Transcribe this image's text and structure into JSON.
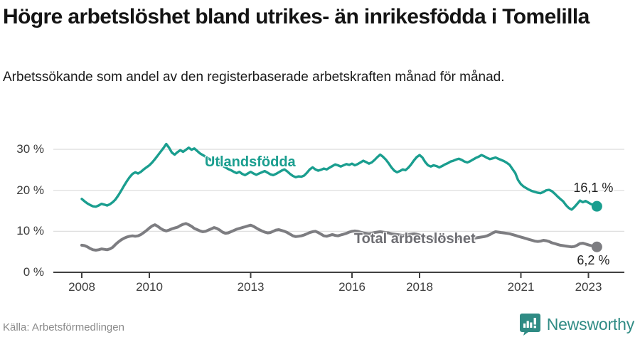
{
  "header": {
    "title": "Högre arbetslöshet bland utrikes- än inrikesfödda i Tomelilla",
    "subtitle": "Arbetssökande som andel av den registerbaserade arbetskraften månad för månad."
  },
  "chart_data": {
    "type": "line",
    "title": "Högre arbetslöshet bland utrikes- än inrikesfödda i Tomelilla",
    "x_unit": "month",
    "x_start_year": 2008,
    "x_end": "2023-04",
    "ylim": [
      0,
      33
    ],
    "grid": "horizontal",
    "yticks": [
      {
        "label": "0 %",
        "value": 0
      },
      {
        "label": "10 %",
        "value": 10
      },
      {
        "label": "20 %",
        "value": 20
      },
      {
        "label": "30 %",
        "value": 30
      }
    ],
    "xticks": [
      {
        "label": "2008",
        "year": 2008
      },
      {
        "label": "2010",
        "year": 2010
      },
      {
        "label": "2013",
        "year": 2013
      },
      {
        "label": "2016",
        "year": 2016
      },
      {
        "label": "2018",
        "year": 2018
      },
      {
        "label": "2021",
        "year": 2021
      },
      {
        "label": "2023",
        "year": 2023
      }
    ],
    "series": [
      {
        "name": "Utlandsfödda",
        "color": "#1a9e8f",
        "end_label": "16,1 %",
        "end_value": 16.1,
        "values": [
          17.9,
          17.3,
          16.8,
          16.4,
          16.1,
          16.0,
          16.3,
          16.7,
          16.5,
          16.3,
          16.6,
          17.1,
          17.8,
          18.8,
          19.9,
          21.1,
          22.2,
          23.2,
          24.0,
          24.4,
          24.1,
          24.5,
          25.1,
          25.6,
          26.1,
          26.8,
          27.6,
          28.5,
          29.4,
          30.3,
          31.3,
          30.4,
          29.2,
          28.7,
          29.3,
          29.8,
          29.4,
          29.9,
          30.4,
          29.9,
          30.2,
          29.6,
          29.0,
          28.6,
          28.2,
          27.8,
          27.3,
          27.6,
          27.1,
          26.5,
          26.0,
          25.6,
          25.2,
          24.9,
          24.5,
          24.2,
          24.5,
          24.0,
          23.7,
          24.1,
          24.5,
          24.1,
          23.8,
          24.1,
          24.4,
          24.7,
          24.3,
          23.9,
          23.7,
          24.0,
          24.4,
          24.8,
          25.1,
          24.6,
          24.0,
          23.5,
          23.2,
          23.4,
          23.3,
          23.6,
          24.3,
          25.1,
          25.6,
          25.1,
          24.8,
          25.0,
          25.3,
          25.1,
          25.5,
          25.9,
          26.3,
          26.1,
          25.8,
          26.1,
          26.4,
          26.2,
          26.5,
          26.1,
          26.4,
          26.8,
          27.2,
          26.9,
          26.5,
          26.8,
          27.4,
          28.1,
          28.7,
          28.2,
          27.5,
          26.6,
          25.6,
          24.8,
          24.4,
          24.7,
          25.1,
          24.9,
          25.5,
          26.3,
          27.3,
          28.1,
          28.6,
          28.0,
          26.9,
          26.1,
          25.8,
          26.1,
          25.9,
          25.6,
          25.9,
          26.3,
          26.6,
          27.0,
          27.2,
          27.5,
          27.7,
          27.4,
          27.0,
          26.8,
          27.1,
          27.5,
          27.9,
          28.2,
          28.6,
          28.3,
          27.9,
          27.6,
          27.8,
          28.0,
          27.7,
          27.4,
          27.1,
          26.7,
          26.2,
          25.2,
          24.2,
          22.5,
          21.5,
          20.9,
          20.5,
          20.1,
          19.8,
          19.6,
          19.4,
          19.3,
          19.6,
          20.0,
          20.1,
          19.8,
          19.2,
          18.5,
          17.9,
          17.3,
          16.4,
          15.7,
          15.3,
          15.9,
          16.7,
          17.5,
          17.1,
          17.4,
          17.0,
          16.6,
          16.4,
          16.1
        ]
      },
      {
        "name": "Total arbetslöshet",
        "color": "#7d7d81",
        "end_label": "6,2 %",
        "end_value": 6.2,
        "values": [
          6.6,
          6.5,
          6.2,
          5.8,
          5.5,
          5.4,
          5.5,
          5.7,
          5.6,
          5.5,
          5.7,
          6.1,
          6.8,
          7.4,
          7.9,
          8.3,
          8.6,
          8.8,
          8.9,
          8.8,
          8.9,
          9.2,
          9.7,
          10.2,
          10.8,
          11.3,
          11.6,
          11.2,
          10.7,
          10.3,
          10.1,
          10.3,
          10.6,
          10.8,
          11.0,
          11.4,
          11.7,
          11.9,
          11.6,
          11.2,
          10.7,
          10.4,
          10.1,
          9.9,
          10.0,
          10.3,
          10.6,
          10.9,
          10.7,
          10.3,
          9.8,
          9.5,
          9.6,
          9.9,
          10.2,
          10.5,
          10.7,
          10.9,
          11.1,
          11.3,
          11.5,
          11.2,
          10.8,
          10.4,
          10.1,
          9.8,
          9.6,
          9.7,
          10.0,
          10.3,
          10.4,
          10.2,
          10.0,
          9.7,
          9.3,
          8.9,
          8.7,
          8.8,
          8.9,
          9.1,
          9.4,
          9.7,
          9.9,
          10.0,
          9.7,
          9.3,
          8.9,
          8.8,
          9.0,
          9.2,
          9.0,
          8.9,
          9.1,
          9.3,
          9.5,
          9.8,
          10.0,
          10.1,
          10.0,
          9.8,
          9.6,
          9.5,
          9.4,
          9.5,
          9.7,
          9.8,
          9.9,
          9.8,
          9.7,
          9.6,
          9.4,
          9.3,
          9.2,
          9.1,
          9.0,
          9.1,
          9.2,
          9.3,
          9.4,
          9.3,
          9.1,
          8.9,
          8.7,
          8.5,
          8.4,
          8.3,
          8.2,
          8.3,
          8.4,
          8.5,
          8.6,
          8.5,
          8.4,
          8.3,
          8.2,
          8.1,
          8.0,
          8.1,
          8.2,
          8.3,
          8.4,
          8.5,
          8.6,
          8.7,
          8.9,
          9.2,
          9.6,
          9.9,
          9.8,
          9.7,
          9.6,
          9.5,
          9.4,
          9.2,
          9.0,
          8.8,
          8.6,
          8.4,
          8.2,
          8.0,
          7.8,
          7.6,
          7.5,
          7.6,
          7.8,
          7.7,
          7.5,
          7.2,
          7.0,
          6.8,
          6.6,
          6.5,
          6.4,
          6.3,
          6.2,
          6.3,
          6.6,
          7.0,
          7.1,
          6.9,
          6.7,
          6.5,
          6.3,
          6.2
        ]
      }
    ],
    "annotations": [
      {
        "text": "Utlandsfödda",
        "color": "#1a9e8f",
        "x_year": 2011.64,
        "y_top_value": 28.8
      },
      {
        "text": "Total arbetslöshet",
        "color": "#6e6e73",
        "x_year": 2016.06,
        "y_top_value": 10.06
      }
    ]
  },
  "footer": {
    "source": "Källa: Arbetsförmedlingen",
    "brand": "Newsworthy"
  },
  "colors": {
    "accent_teal": "#1a9e8f",
    "line_gray": "#7d7d81",
    "logo_teal": "#2f8b84",
    "grid": "#dcdcdc",
    "axis": "#404040"
  }
}
